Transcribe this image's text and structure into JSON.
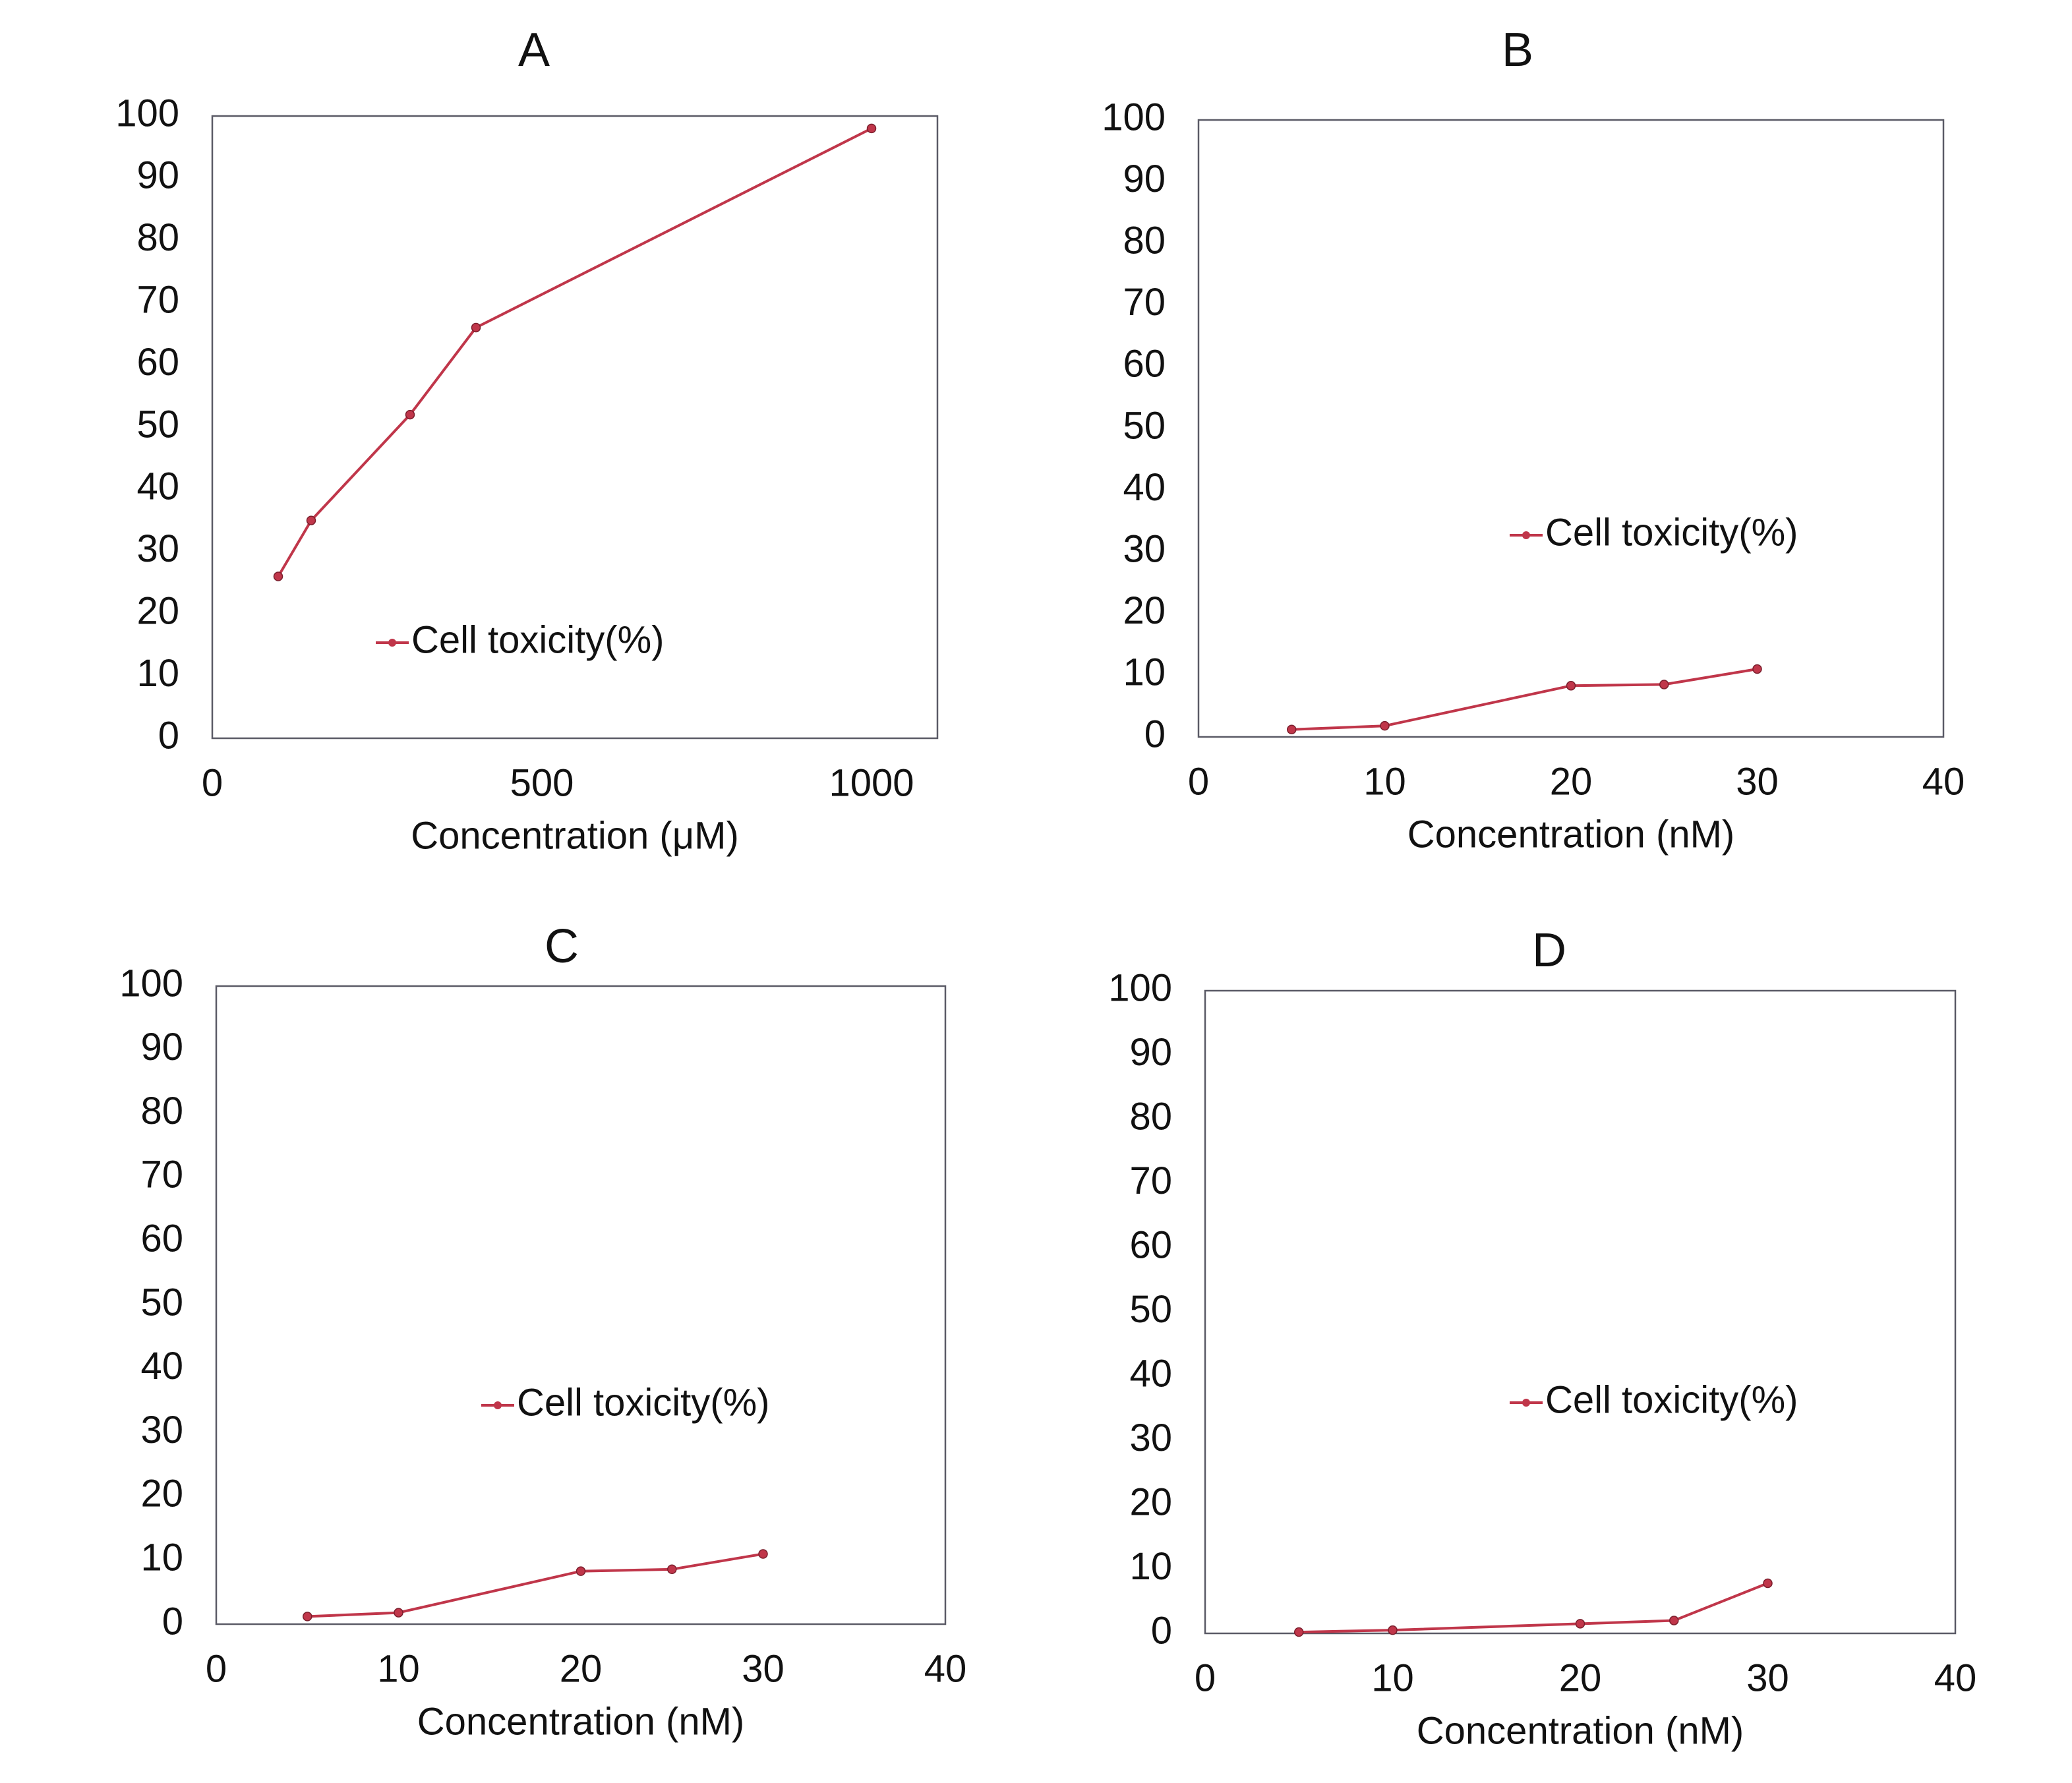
{
  "chart_data": [
    {
      "type": "line",
      "title": "A",
      "xlabel": "Concentration (μM)",
      "ylabel": "",
      "xlim": [
        0,
        1100
      ],
      "ylim": [
        0,
        100
      ],
      "x_ticks": [
        0,
        500,
        1000
      ],
      "y_ticks": [
        0,
        10,
        20,
        30,
        40,
        50,
        60,
        70,
        80,
        90,
        100
      ],
      "legend_position": "bottom-left",
      "series": [
        {
          "name": "Cell toxicity(%)",
          "color": "#c0364a",
          "x": [
            100,
            150,
            300,
            400,
            1000
          ],
          "values": [
            26,
            35,
            52,
            66,
            98
          ]
        }
      ]
    },
    {
      "type": "line",
      "title": "B",
      "xlabel": "Concentration (nM)",
      "ylabel": "",
      "xlim": [
        0,
        40
      ],
      "ylim": [
        0,
        100
      ],
      "x_ticks": [
        0,
        10,
        20,
        30,
        40
      ],
      "y_ticks": [
        0,
        10,
        20,
        30,
        40,
        50,
        60,
        70,
        80,
        90,
        100
      ],
      "legend_position": "center-right",
      "series": [
        {
          "name": "Cell toxicity(%)",
          "color": "#c0364a",
          "x": [
            5,
            10,
            20,
            25,
            30
          ],
          "values": [
            1.2,
            1.8,
            8.3,
            8.5,
            11
          ]
        }
      ]
    },
    {
      "type": "line",
      "title": "C",
      "xlabel": "Concentration (nM)",
      "ylabel": "",
      "xlim": [
        0,
        40
      ],
      "ylim": [
        0,
        100
      ],
      "x_ticks": [
        0,
        10,
        20,
        30,
        40
      ],
      "y_ticks": [
        0,
        10,
        20,
        30,
        40,
        50,
        60,
        70,
        80,
        90,
        100
      ],
      "legend_position": "center-right",
      "series": [
        {
          "name": "Cell toxicity(%)",
          "color": "#c0364a",
          "x": [
            5,
            10,
            20,
            25,
            30
          ],
          "values": [
            1.2,
            1.8,
            8.3,
            8.6,
            11
          ]
        }
      ]
    },
    {
      "type": "line",
      "title": "D",
      "xlabel": "Concentration (nM)",
      "ylabel": "",
      "xlim": [
        0,
        40
      ],
      "ylim": [
        0,
        100
      ],
      "x_ticks": [
        0,
        10,
        20,
        30,
        40
      ],
      "y_ticks": [
        0,
        10,
        20,
        30,
        40,
        50,
        60,
        70,
        80,
        90,
        100
      ],
      "legend_position": "center-right",
      "series": [
        {
          "name": "Cell toxicity(%)",
          "color": "#c0364a",
          "x": [
            5,
            10,
            20,
            25,
            30
          ],
          "values": [
            0.2,
            0.5,
            1.5,
            2,
            7.8
          ]
        }
      ]
    }
  ]
}
